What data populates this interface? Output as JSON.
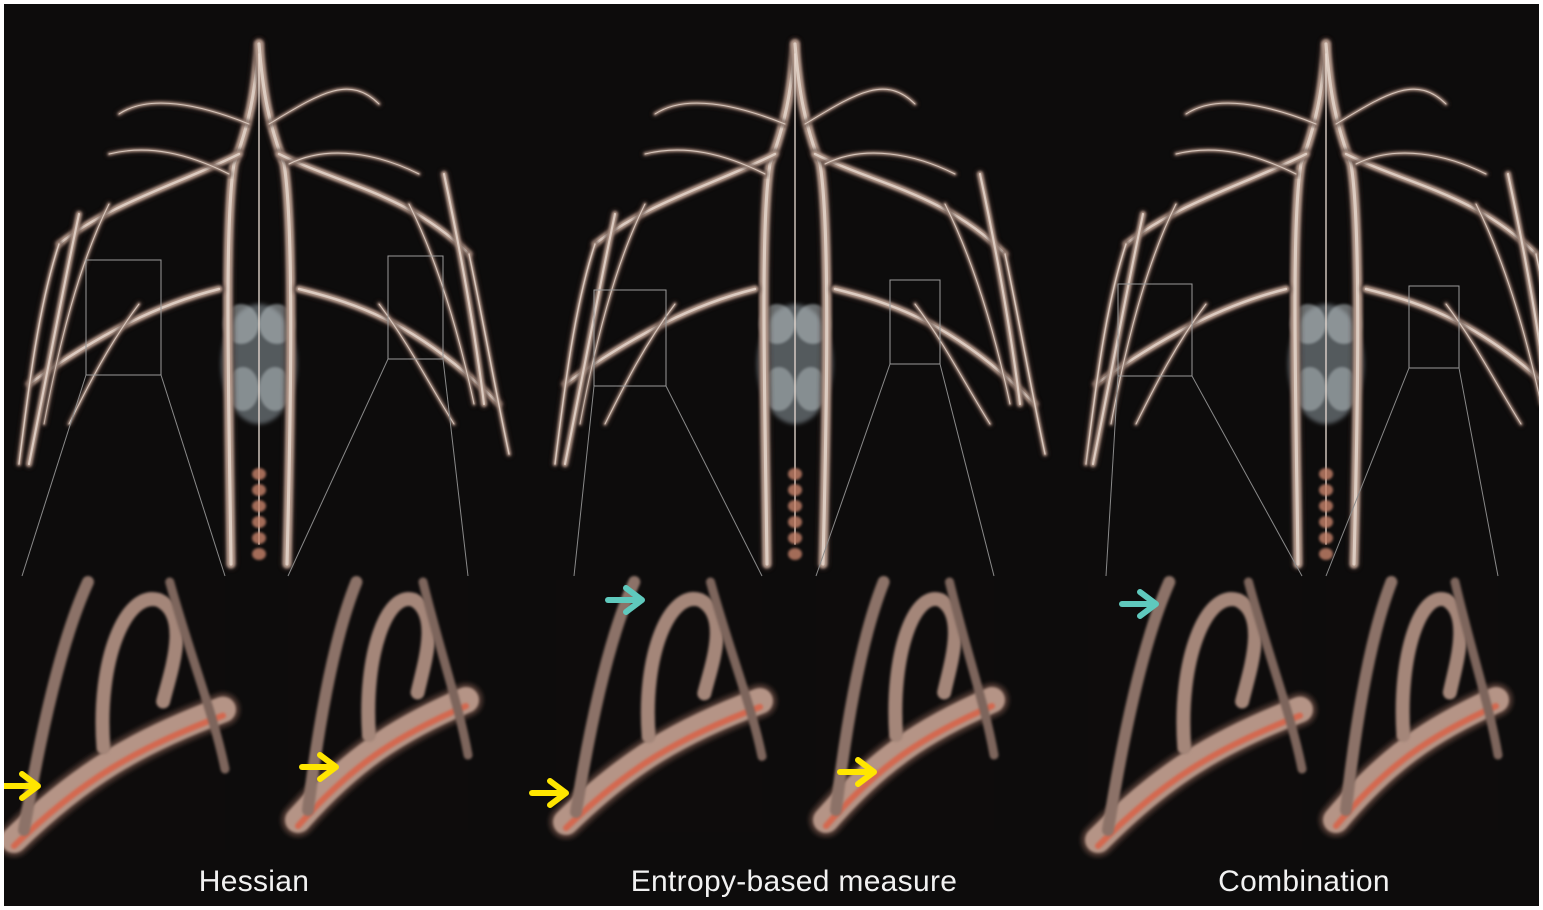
{
  "figure": {
    "panels": [
      {
        "caption": "Hessian",
        "arrows_left": [
          "yellow"
        ],
        "arrows_right": [
          "yellow"
        ]
      },
      {
        "caption": "Entropy-based measure",
        "arrows_left": [
          "teal",
          "yellow"
        ],
        "arrows_right": [
          "yellow"
        ]
      },
      {
        "caption": "Combination",
        "arrows_left": [
          "teal"
        ],
        "arrows_right": []
      }
    ]
  },
  "colors": {
    "background": "#0d0c0c",
    "vessel": "#b49a8c",
    "vessel_highlight": "#e9dcd3",
    "vessel_edge": "#d8644a",
    "arrow_yellow": "#ffe600",
    "arrow_teal": "#5fc9bd",
    "caption_text": "#f2f2f2"
  }
}
